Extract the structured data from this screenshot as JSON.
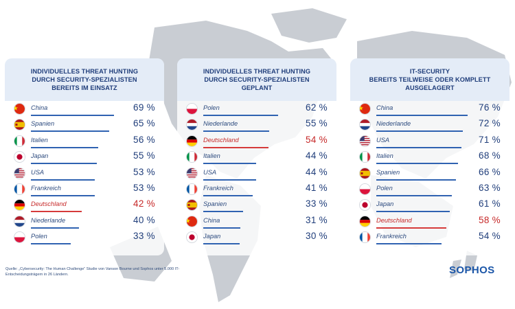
{
  "source_text": "Quelle: „Cybersecurity: The Human Challenge“ Studie von Vanson Bourne und Sophos unter 5.000 IT-Entscheidungsträgern in 26 Ländern.",
  "logo": "SOPHOS",
  "colors": {
    "bar": "#2f62b1",
    "highlight": "#c62828",
    "title": "#1f3d7a",
    "header_bg": "#e4ecf7"
  },
  "chart_data": [
    {
      "type": "bar",
      "title": "INDIVIDUELLES THREAT HUNTING\nDURCH SECURITY-SPEZIALISTEN\nBEREITS IM EINSATZ",
      "unit": "%",
      "highlight": "Deutschland",
      "categories": [
        "China",
        "Spanien",
        "Italien",
        "Japan",
        "USA",
        "Frankreich",
        "Deutschland",
        "Niederlande",
        "Polen"
      ],
      "values": [
        69,
        65,
        56,
        55,
        53,
        53,
        42,
        40,
        33
      ],
      "labels": [
        "69 %",
        "65 %",
        "56 %",
        "55 %",
        "53 %",
        "53 %",
        "42 %",
        "40 %",
        "33 %"
      ],
      "flags": [
        "cn",
        "es",
        "it",
        "jp",
        "us",
        "fr",
        "de",
        "nl",
        "pl"
      ]
    },
    {
      "type": "bar",
      "title": "INDIVIDUELLES THREAT HUNTING\nDURCH SECURITY-SPEZIALISTEN\nGEPLANT",
      "unit": "%",
      "highlight": "Deutschland",
      "categories": [
        "Polen",
        "Niederlande",
        "Deutschland",
        "Italien",
        "USA",
        "Frankreich",
        "Spanien",
        "China",
        "Japan"
      ],
      "values": [
        62,
        55,
        54,
        44,
        44,
        41,
        33,
        31,
        30
      ],
      "labels": [
        "62 %",
        "55 %",
        "54 %",
        "44 %",
        "44 %",
        "41 %",
        "33 %",
        "31 %",
        "30 %"
      ],
      "flags": [
        "pl",
        "nl",
        "de",
        "it",
        "us",
        "fr",
        "es",
        "cn",
        "jp"
      ]
    },
    {
      "type": "bar",
      "title": "IT-SECURITY\nBEREITS TEILWEISE ODER KOMPLETT\nAUSGELAGERT",
      "unit": "%",
      "highlight": "Deutschland",
      "categories": [
        "China",
        "Niederlande",
        "USA",
        "Italien",
        "Spanien",
        "Polen",
        "Japan",
        "Deutschland",
        "Frankreich"
      ],
      "values": [
        76,
        72,
        71,
        68,
        66,
        63,
        61,
        58,
        54
      ],
      "labels": [
        "76 %",
        "72 %",
        "71 %",
        "68 %",
        "66 %",
        "63 %",
        "61 %",
        "58 %",
        "54 %"
      ],
      "flags": [
        "cn",
        "nl",
        "us",
        "it",
        "es",
        "pl",
        "jp",
        "de",
        "fr"
      ]
    }
  ]
}
